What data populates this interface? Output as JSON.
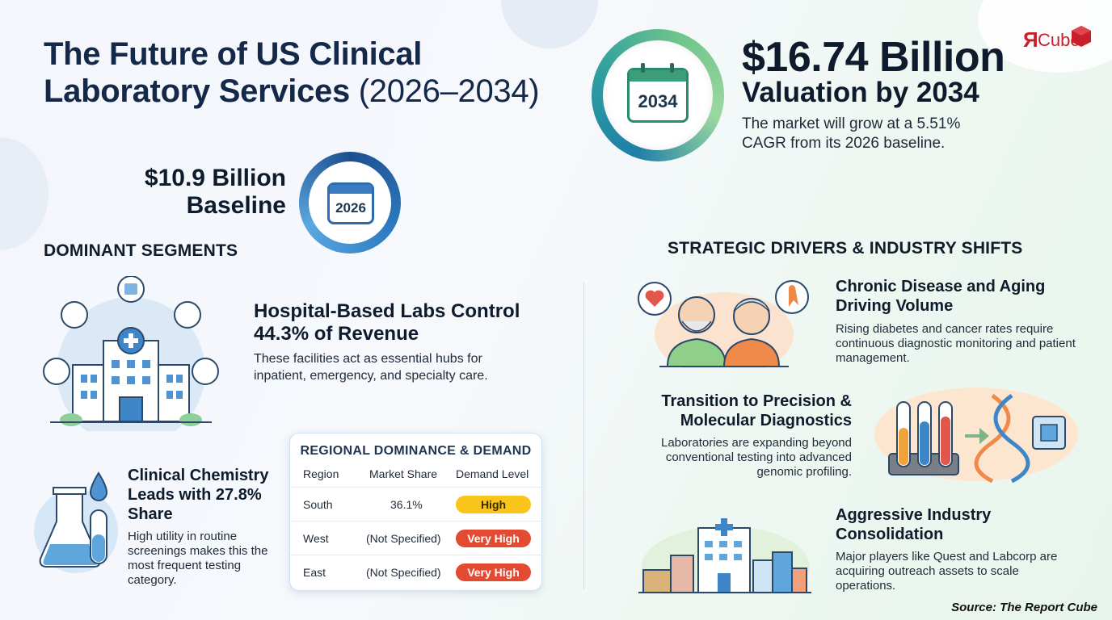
{
  "header": {
    "title_main": "The Future of US Clinical Laboratory Services",
    "title_years": "(2026–2034)"
  },
  "logo": {
    "r_glyph": "Я",
    "text": "Cube",
    "color": "#c8202a"
  },
  "valuation": {
    "amount": "$16.74 Billion",
    "label": "Valuation by 2034",
    "description": "The market will grow at a 5.51% CAGR from its 2026 baseline.",
    "calendar_year": "2034"
  },
  "baseline": {
    "amount": "$10.9 Billion",
    "label": "Baseline",
    "calendar_year": "2026"
  },
  "segments": {
    "heading": "DOMINANT SEGMENTS",
    "hospital": {
      "title": "Hospital-Based Labs Control 44.3% of Revenue",
      "description": "These facilities act as essential hubs for inpatient, emergency, and specialty care."
    },
    "chemistry": {
      "title": "Clinical Chemistry Leads with 27.8% Share",
      "description": "High utility in routine screenings makes this the most frequent testing category."
    }
  },
  "regional_table": {
    "title": "REGIONAL DOMINANCE & DEMAND",
    "headers": [
      "Region",
      "Market Share",
      "Demand Level"
    ],
    "rows": [
      {
        "region": "South",
        "share": "36.1%",
        "demand": "High",
        "color": "#f9c51b"
      },
      {
        "region": "West",
        "share": "(Not Specified)",
        "demand": "Very High",
        "color": "#e24b32"
      },
      {
        "region": "East",
        "share": "(Not Specified)",
        "demand": "Very High",
        "color": "#e24b32"
      }
    ]
  },
  "drivers": {
    "heading": "STRATEGIC DRIVERS & INDUSTRY SHIFTS",
    "items": [
      {
        "title": "Chronic Disease and Aging Driving Volume",
        "description": "Rising diabetes and cancer rates require continuous diagnostic monitoring and patient management."
      },
      {
        "title": "Transition to Precision & Molecular Diagnostics",
        "description": "Laboratories are expanding beyond conventional testing into advanced genomic profiling."
      },
      {
        "title": "Aggressive Industry Consolidation",
        "description": "Major players like Quest and Labcorp are acquiring outreach assets to scale operations."
      }
    ]
  },
  "source": "Source: The Report Cube",
  "icons": [
    "calendar-icon",
    "hospital-icon",
    "flask-icon",
    "elderly-couple-icon",
    "test-tubes-dna-icon",
    "city-buildings-icon",
    "ribbon-icon",
    "heart-icon"
  ]
}
